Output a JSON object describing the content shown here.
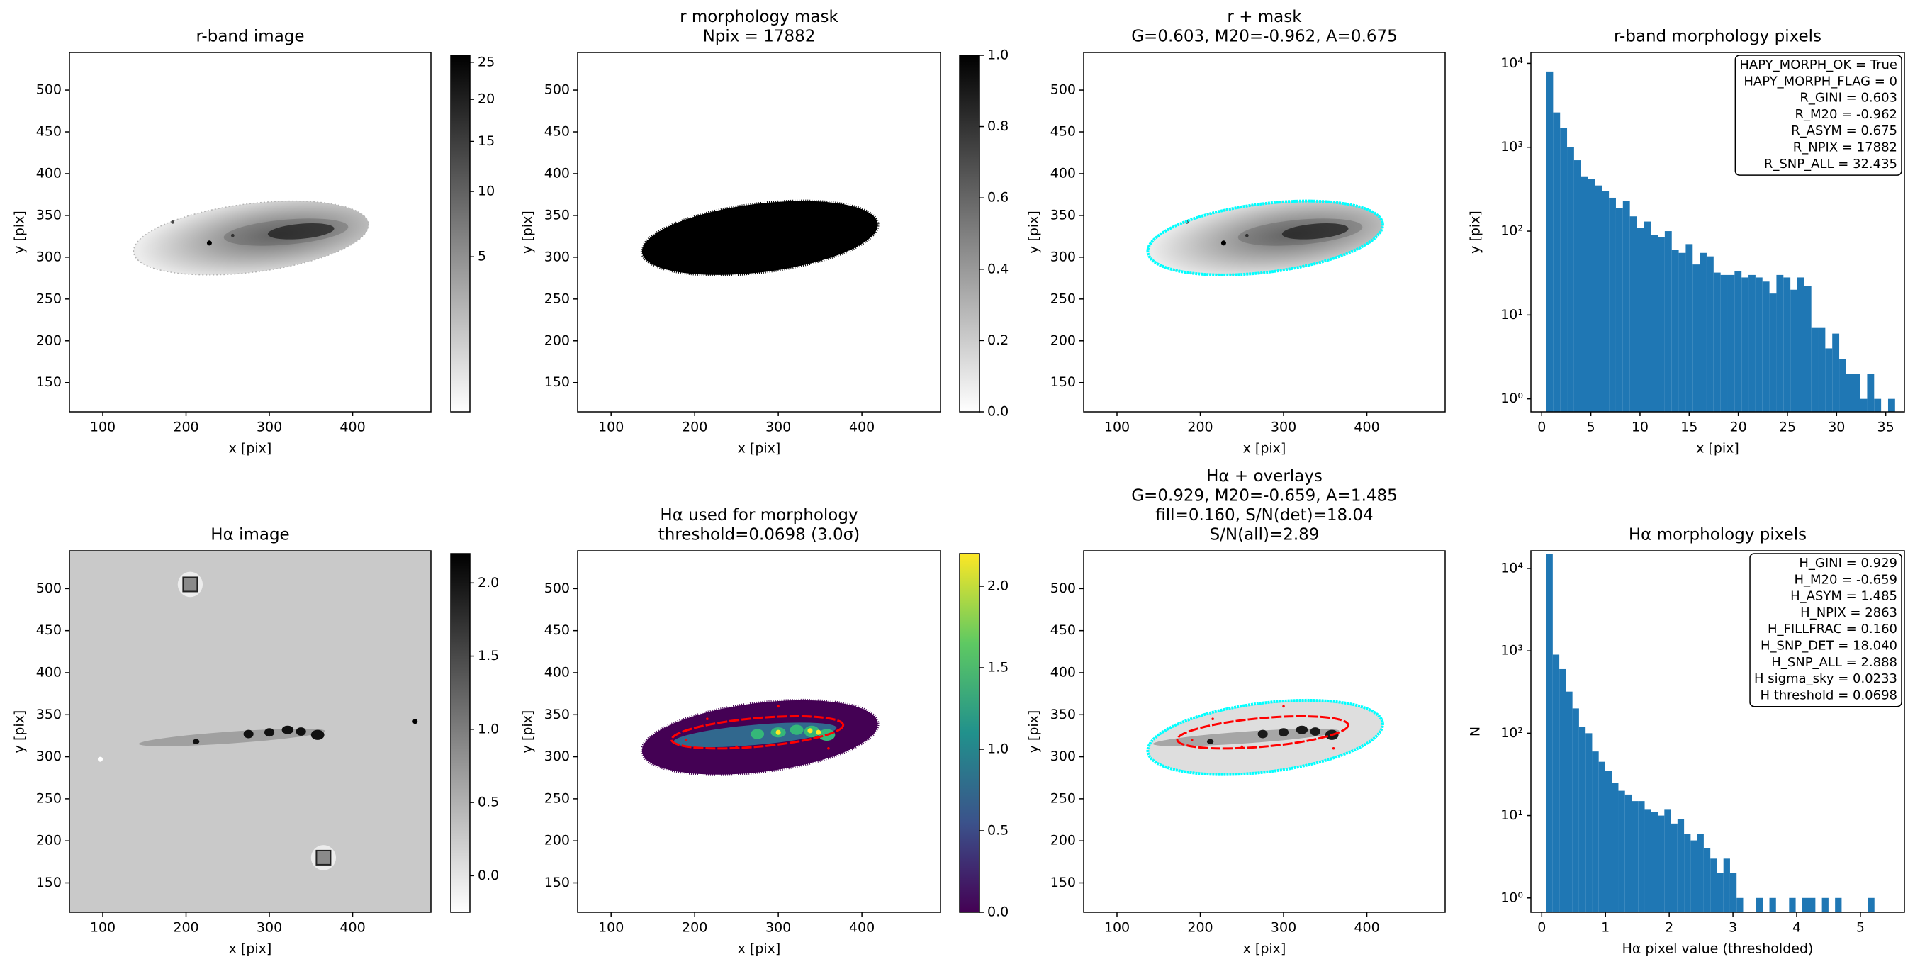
{
  "chart_data": [
    {
      "type": "image",
      "title": [
        "r-band image"
      ],
      "xlabel": "x [pix]",
      "ylabel": "y [pix]",
      "xlim": [
        60,
        494
      ],
      "ylim": [
        115,
        545
      ],
      "xticks": [
        100,
        200,
        300,
        400
      ],
      "yticks": [
        150,
        200,
        250,
        300,
        350,
        400,
        450,
        500
      ],
      "cmap": "gray_r",
      "cscale": "sqrt",
      "clim": [
        0.1,
        26
      ],
      "cticks": [
        5,
        10,
        15,
        20,
        25
      ]
    },
    {
      "type": "image",
      "title": [
        "r morphology mask",
        "Npix = 17882"
      ],
      "xlabel": "x [pix]",
      "ylabel": "y [pix]",
      "xlim": [
        60,
        494
      ],
      "ylim": [
        115,
        545
      ],
      "xticks": [
        100,
        200,
        300,
        400
      ],
      "yticks": [
        150,
        200,
        250,
        300,
        350,
        400,
        450,
        500
      ],
      "cmap": "gray_r",
      "cscale": "linear",
      "clim": [
        0,
        1
      ],
      "cticks": [
        {
          "value": 0,
          "label": "0.0"
        },
        0.2,
        0.4,
        0.6,
        0.8,
        {
          "value": 1,
          "label": "1.0"
        }
      ]
    },
    {
      "type": "image",
      "title": [
        "r + mask",
        "G=0.603, M20=-0.962, A=0.675"
      ],
      "xlabel": "x [pix]",
      "ylabel": "y [pix]",
      "xlim": [
        60,
        494
      ],
      "ylim": [
        115,
        545
      ],
      "xticks": [
        100,
        200,
        300,
        400
      ],
      "yticks": [
        150,
        200,
        250,
        300,
        350,
        400,
        450,
        500
      ]
    },
    {
      "type": "histogram",
      "title": [
        "r-band morphology pixels"
      ],
      "xlabel": "x [pix]",
      "ylabel": "y [pix]",
      "color": "#1f77b4",
      "bins": [
        0.45,
        1.16,
        1.87,
        2.58,
        3.29,
        4.0,
        4.71,
        5.42,
        6.13,
        6.84,
        7.55,
        8.26,
        8.97,
        9.68,
        10.39,
        11.1,
        11.81,
        12.52,
        13.23,
        13.94,
        14.65,
        15.36,
        16.07,
        16.78,
        17.49,
        18.2,
        18.91,
        19.62,
        20.33,
        21.04,
        21.75,
        22.46,
        23.17,
        23.88,
        24.59,
        25.3,
        26.01,
        26.72,
        27.43,
        28.14,
        28.85,
        29.56,
        30.27,
        30.98,
        31.69,
        32.4,
        33.11,
        33.82,
        34.53,
        35.24,
        35.95
      ],
      "values": [
        8000,
        2600,
        1700,
        1000,
        700,
        450,
        420,
        350,
        300,
        250,
        190,
        230,
        150,
        110,
        130,
        90,
        85,
        100,
        60,
        55,
        70,
        40,
        55,
        50,
        32,
        30,
        30,
        33,
        28,
        30,
        28,
        25,
        18,
        30,
        28,
        20,
        28,
        22,
        7,
        7,
        4,
        6,
        3,
        2,
        2,
        1,
        2,
        1,
        0,
        1
      ],
      "xlim": [
        -1.1,
        36.9
      ],
      "xticks": [
        0,
        5,
        10,
        15,
        20,
        25,
        30,
        35
      ],
      "yscale": "log",
      "ylim": [
        0.7,
        13500
      ],
      "yticks": [
        {
          "value": 1,
          "label": "10⁰"
        },
        {
          "value": 10,
          "label": "10¹"
        },
        {
          "value": 100,
          "label": "10²"
        },
        {
          "value": 1000,
          "label": "10³"
        },
        {
          "value": 10000,
          "label": "10⁴"
        }
      ],
      "annotation": [
        "HAPY_MORPH_OK = True",
        "HAPY_MORPH_FLAG = 0",
        "R_GINI = 0.603",
        "R_M20 = -0.962",
        "R_ASYM = 0.675",
        "R_NPIX = 17882",
        "R_SNP_ALL = 32.435"
      ]
    },
    {
      "type": "image",
      "title": [
        "Hα image"
      ],
      "xlabel": "x [pix]",
      "ylabel": "y [pix]",
      "xlim": [
        60,
        494
      ],
      "ylim": [
        115,
        545
      ],
      "xticks": [
        100,
        200,
        300,
        400
      ],
      "yticks": [
        150,
        200,
        250,
        300,
        350,
        400,
        450,
        500
      ],
      "cmap": "gray_r",
      "cscale": "linear",
      "clim": [
        -0.25,
        2.2
      ],
      "cticks": [
        {
          "value": 0,
          "label": "0.0"
        },
        0.5,
        {
          "value": 1,
          "label": "1.0"
        },
        1.5,
        {
          "value": 2,
          "label": "2.0"
        }
      ]
    },
    {
      "type": "image",
      "title": [
        "Hα used for morphology",
        "threshold=0.0698 (3.0σ)"
      ],
      "xlabel": "x [pix]",
      "ylabel": "y [pix]",
      "xlim": [
        60,
        494
      ],
      "ylim": [
        115,
        545
      ],
      "xticks": [
        100,
        200,
        300,
        400
      ],
      "yticks": [
        150,
        200,
        250,
        300,
        350,
        400,
        450,
        500
      ],
      "cmap": "viridis",
      "cscale": "linear",
      "clim": [
        0,
        2.2
      ],
      "cticks": [
        {
          "value": 0,
          "label": "0.0"
        },
        0.5,
        {
          "value": 1,
          "label": "1.0"
        },
        1.5,
        {
          "value": 2,
          "label": "2.0"
        }
      ]
    },
    {
      "type": "image",
      "title": [
        "Hα + overlays",
        "G=0.929, M20=-0.659, A=1.485",
        "fill=0.160, S/N(det)=18.04",
        "S/N(all)=2.89"
      ],
      "xlabel": "x [pix]",
      "ylabel": "y [pix]",
      "xlim": [
        60,
        494
      ],
      "ylim": [
        115,
        545
      ],
      "xticks": [
        100,
        200,
        300,
        400
      ],
      "yticks": [
        150,
        200,
        250,
        300,
        350,
        400,
        450,
        500
      ]
    },
    {
      "type": "histogram",
      "title": [
        "Hα morphology pixels"
      ],
      "xlabel": "Hα pixel value (thresholded)",
      "ylabel": "N",
      "color": "#1f77b4",
      "bins": [
        0.07,
        0.173,
        0.276,
        0.379,
        0.482,
        0.585,
        0.688,
        0.791,
        0.894,
        0.997,
        1.1,
        1.203,
        1.306,
        1.409,
        1.512,
        1.615,
        1.718,
        1.821,
        1.924,
        2.027,
        2.13,
        2.233,
        2.336,
        2.439,
        2.542,
        2.645,
        2.748,
        2.851,
        2.954,
        3.057,
        3.16,
        3.263,
        3.366,
        3.469,
        3.572,
        3.675,
        3.778,
        3.881,
        3.984,
        4.087,
        4.19,
        4.293,
        4.396,
        4.499,
        4.602,
        4.705,
        4.808,
        4.911,
        5.014,
        5.117,
        5.22
      ],
      "values": [
        15000,
        900,
        600,
        320,
        200,
        120,
        100,
        60,
        45,
        35,
        25,
        20,
        18,
        15,
        15,
        12,
        11,
        10,
        12,
        8,
        9,
        6,
        5,
        6,
        4,
        3,
        2,
        3,
        2,
        1,
        0,
        0,
        1,
        0,
        1,
        0,
        0,
        1,
        0,
        1,
        1,
        0,
        1,
        0,
        1,
        0,
        0,
        0,
        0,
        1
      ],
      "xlim": [
        -0.17,
        5.69
      ],
      "xticks": [
        0,
        1,
        2,
        3,
        4,
        5
      ],
      "yscale": "log",
      "ylim": [
        0.67,
        16400
      ],
      "yticks": [
        {
          "value": 1,
          "label": "10⁰"
        },
        {
          "value": 10,
          "label": "10¹"
        },
        {
          "value": 100,
          "label": "10²"
        },
        {
          "value": 1000,
          "label": "10³"
        },
        {
          "value": 10000,
          "label": "10⁴"
        }
      ],
      "annotation": [
        "H_GINI = 0.929",
        "H_M20 = -0.659",
        "H_ASYM = 1.485",
        "H_NPIX = 2863",
        "H_FILLFRAC = 0.160",
        "H_SNP_DET = 18.040",
        "H_SNP_ALL = 2.888",
        "H sigma_sky = 0.0233",
        "H threshold = 0.0698"
      ]
    }
  ]
}
